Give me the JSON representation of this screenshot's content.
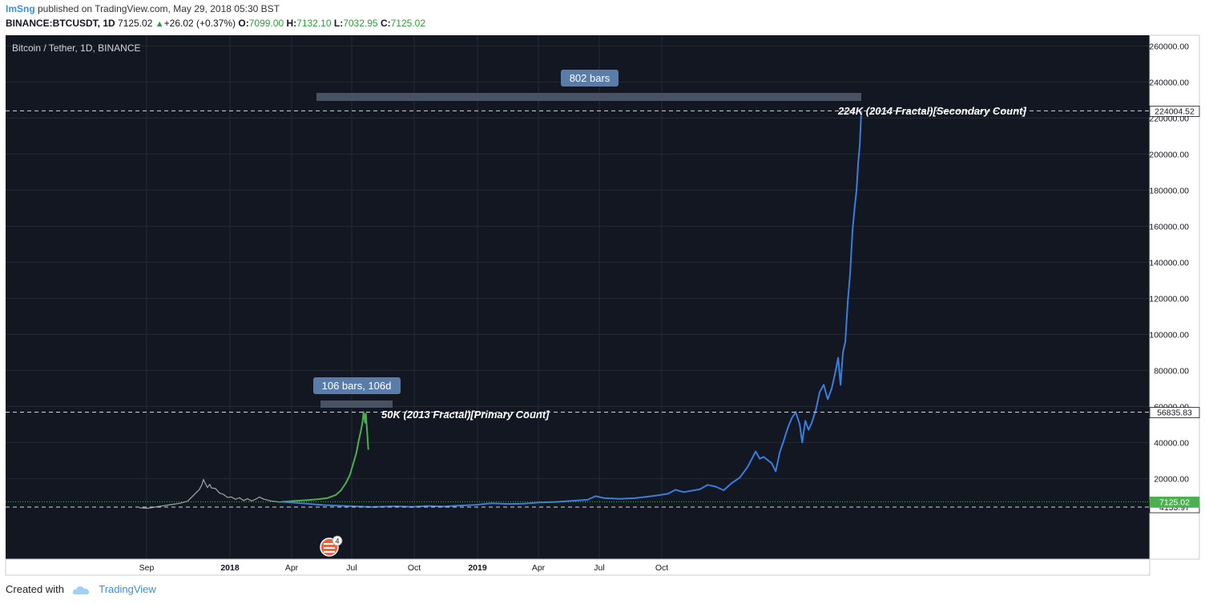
{
  "header": {
    "author": "ImSng",
    "published": " published on TradingView.com, May 29, 2018 05:30 BST",
    "symbol": "BINANCE:BTCUSDT, 1D",
    "last": "7125.02",
    "change": "+26.02 (+0.37%)",
    "o_label": "O:",
    "o": "7099.00",
    "h_label": "H:",
    "h": "7132.10",
    "l_label": "L:",
    "l": "7032.95",
    "c_label": "C:",
    "c": "7125.02"
  },
  "chart_data": {
    "type": "line",
    "title": "Bitcoin / Tether, 1D, BINANCE",
    "x_ticks": [
      "Sep",
      "2018",
      "Apr",
      "Jul",
      "Oct",
      "2019",
      "Apr",
      "Jul",
      "Oct"
    ],
    "y_ticks": [
      "20000.00",
      "40000.00",
      "60000.00",
      "80000.00",
      "100000.00",
      "120000.00",
      "140000.00",
      "160000.00",
      "180000.00",
      "200000.00",
      "220000.00",
      "240000.00",
      "260000.00"
    ],
    "ylim": [
      -12000,
      270000
    ],
    "series": [
      {
        "color": "#9c9c9c",
        "points": [
          [
            0,
            3800
          ],
          [
            10,
            3500
          ],
          [
            20,
            4200
          ],
          [
            30,
            4900
          ],
          [
            40,
            5600
          ],
          [
            50,
            6200
          ],
          [
            60,
            7400
          ],
          [
            65,
            9500
          ],
          [
            70,
            11800
          ],
          [
            75,
            14000
          ],
          [
            78,
            16500
          ],
          [
            80,
            19500
          ],
          [
            82,
            17500
          ],
          [
            85,
            15000
          ],
          [
            88,
            16800
          ],
          [
            90,
            14800
          ],
          [
            95,
            14500
          ],
          [
            100,
            12000
          ],
          [
            105,
            11200
          ],
          [
            110,
            9500
          ],
          [
            115,
            9800
          ],
          [
            120,
            8500
          ],
          [
            125,
            9400
          ],
          [
            130,
            7800
          ],
          [
            135,
            8800
          ],
          [
            140,
            7600
          ],
          [
            145,
            8500
          ],
          [
            150,
            9800
          ],
          [
            155,
            8600
          ],
          [
            160,
            8100
          ],
          [
            165,
            7500
          ],
          [
            170,
            7300
          ],
          [
            175,
            6900
          ],
          [
            178,
            7125
          ]
        ]
      },
      {
        "color": "#4caf50",
        "points": [
          [
            178,
            7125
          ],
          [
            185,
            7300
          ],
          [
            195,
            7600
          ],
          [
            205,
            7900
          ],
          [
            215,
            8200
          ],
          [
            225,
            8600
          ],
          [
            235,
            9200
          ],
          [
            245,
            10800
          ],
          [
            252,
            13500
          ],
          [
            258,
            17500
          ],
          [
            263,
            22000
          ],
          [
            267,
            28000
          ],
          [
            271,
            34000
          ],
          [
            274,
            41000
          ],
          [
            277,
            47000
          ],
          [
            279,
            52000
          ],
          [
            280,
            56835
          ],
          [
            281,
            55000
          ],
          [
            282,
            51000
          ],
          [
            283,
            56000
          ],
          [
            284,
            49000
          ],
          [
            285,
            43000
          ],
          [
            286,
            36000
          ]
        ]
      },
      {
        "color": "#3b7ddd",
        "points": [
          [
            178,
            7125
          ],
          [
            200,
            6400
          ],
          [
            230,
            5300
          ],
          [
            260,
            4700
          ],
          [
            290,
            4200
          ],
          [
            320,
            4600
          ],
          [
            340,
            4300
          ],
          [
            360,
            4800
          ],
          [
            380,
            4550
          ],
          [
            400,
            5000
          ],
          [
            420,
            5400
          ],
          [
            440,
            6300
          ],
          [
            460,
            5900
          ],
          [
            480,
            6100
          ],
          [
            500,
            6700
          ],
          [
            520,
            7000
          ],
          [
            540,
            7600
          ],
          [
            560,
            8200
          ],
          [
            570,
            10200
          ],
          [
            580,
            9200
          ],
          [
            600,
            8700
          ],
          [
            620,
            9200
          ],
          [
            640,
            10200
          ],
          [
            660,
            11500
          ],
          [
            670,
            13800
          ],
          [
            680,
            12500
          ],
          [
            700,
            14000
          ],
          [
            710,
            16500
          ],
          [
            720,
            15500
          ],
          [
            730,
            13500
          ],
          [
            740,
            17500
          ],
          [
            750,
            20500
          ],
          [
            760,
            26500
          ],
          [
            770,
            35000
          ],
          [
            775,
            31000
          ],
          [
            780,
            32000
          ],
          [
            790,
            28500
          ],
          [
            795,
            24000
          ],
          [
            800,
            34500
          ],
          [
            805,
            41000
          ],
          [
            810,
            48000
          ],
          [
            815,
            53500
          ],
          [
            820,
            56835
          ],
          [
            825,
            50000
          ],
          [
            828,
            40000
          ],
          [
            832,
            52000
          ],
          [
            836,
            47000
          ],
          [
            840,
            51000
          ],
          [
            845,
            58000
          ],
          [
            850,
            68000
          ],
          [
            855,
            72000
          ],
          [
            860,
            64000
          ],
          [
            865,
            70000
          ],
          [
            870,
            80000
          ],
          [
            873,
            87000
          ],
          [
            876,
            72000
          ],
          [
            879,
            90000
          ],
          [
            882,
            96000
          ],
          [
            885,
            118000
          ],
          [
            888,
            134000
          ],
          [
            891,
            158000
          ],
          [
            894,
            172000
          ],
          [
            896,
            180000
          ],
          [
            898,
            195000
          ],
          [
            899,
            200000
          ],
          [
            900,
            205000
          ],
          [
            901,
            215000
          ],
          [
            902,
            224004
          ]
        ]
      }
    ],
    "hlines": [
      {
        "label": "224004.52",
        "value": 224004.52
      },
      {
        "label": "56835.83",
        "value": 56835.83
      },
      {
        "label": "4153.97",
        "value": 4153.97
      },
      {
        "label": "7125.02",
        "value": 7125.02
      }
    ],
    "annotations": {
      "fractal2014": "224K (2014 Fractal)[Secondary Count]",
      "fractal2013": "50K (2013 Fractal)[Primary Count]",
      "bars_long": "802 bars",
      "bars_short": "106 bars, 106d",
      "events_count": "4"
    }
  },
  "footer": {
    "created": "Created with",
    "brand": "TradingView"
  },
  "colors": {
    "background": "#131722",
    "grid": "#2a2e39",
    "green": "#4caf50",
    "blue": "#3b7ddd",
    "bar_box": "#4a5566",
    "label_box": "#5a7ca8"
  }
}
